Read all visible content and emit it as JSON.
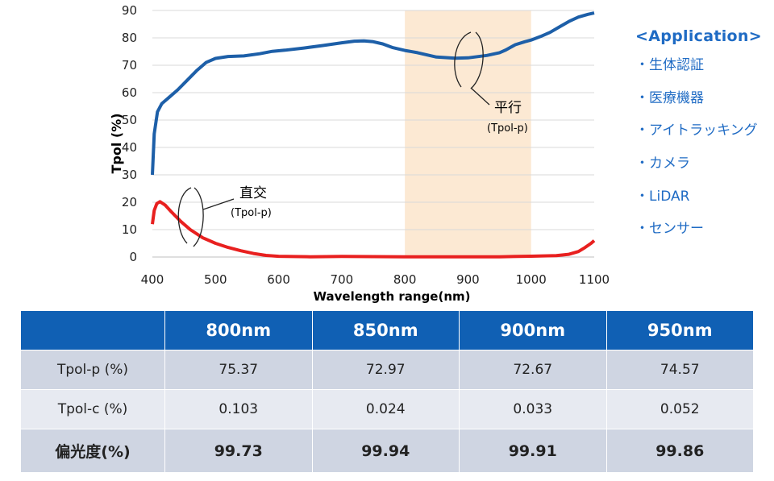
{
  "chart_data": {
    "type": "line",
    "ylabel": "Tpol (%)",
    "xlabel": "Wavelength range(nm)",
    "xlim": [
      400,
      1100
    ],
    "ylim": [
      0,
      90
    ],
    "x_ticks": [
      "400",
      "500",
      "600",
      "700",
      "800",
      "900",
      "1000",
      "1100"
    ],
    "y_ticks": [
      "0",
      "10",
      "20",
      "30",
      "40",
      "50",
      "60",
      "70",
      "80",
      "90"
    ],
    "highlight_band": [
      800,
      1000
    ],
    "series": [
      {
        "name": "Tpol-p (parallel)",
        "color": "#1d5fa8",
        "points": [
          [
            400,
            30
          ],
          [
            403,
            45
          ],
          [
            408,
            53
          ],
          [
            415,
            56
          ],
          [
            425,
            58
          ],
          [
            440,
            61
          ],
          [
            455,
            64.5
          ],
          [
            470,
            68
          ],
          [
            485,
            71
          ],
          [
            500,
            72.5
          ],
          [
            520,
            73.2
          ],
          [
            545,
            73.4
          ],
          [
            570,
            74.2
          ],
          [
            590,
            75.1
          ],
          [
            610,
            75.5
          ],
          [
            640,
            76.3
          ],
          [
            670,
            77.2
          ],
          [
            700,
            78.2
          ],
          [
            720,
            78.8
          ],
          [
            735,
            78.9
          ],
          [
            750,
            78.6
          ],
          [
            765,
            77.8
          ],
          [
            780,
            76.5
          ],
          [
            800,
            75.4
          ],
          [
            820,
            74.6
          ],
          [
            850,
            73.0
          ],
          [
            880,
            72.6
          ],
          [
            900,
            72.7
          ],
          [
            930,
            73.6
          ],
          [
            950,
            74.6
          ],
          [
            960,
            75.6
          ],
          [
            975,
            77.5
          ],
          [
            990,
            78.6
          ],
          [
            1000,
            79.2
          ],
          [
            1015,
            80.5
          ],
          [
            1030,
            82.0
          ],
          [
            1045,
            84.0
          ],
          [
            1060,
            86.0
          ],
          [
            1075,
            87.6
          ],
          [
            1090,
            88.6
          ],
          [
            1100,
            89.1
          ]
        ]
      },
      {
        "name": "Tpol-c (crossed)",
        "color": "#e8201f",
        "points": [
          [
            400,
            12
          ],
          [
            403,
            17
          ],
          [
            407,
            19.5
          ],
          [
            412,
            20.2
          ],
          [
            420,
            19
          ],
          [
            430,
            16.5
          ],
          [
            445,
            13
          ],
          [
            460,
            10
          ],
          [
            480,
            7
          ],
          [
            500,
            5
          ],
          [
            520,
            3.5
          ],
          [
            540,
            2.3
          ],
          [
            560,
            1.3
          ],
          [
            580,
            0.6
          ],
          [
            600,
            0.25
          ],
          [
            650,
            0.1
          ],
          [
            700,
            0.2
          ],
          [
            750,
            0.15
          ],
          [
            800,
            0.1
          ],
          [
            850,
            0.05
          ],
          [
            900,
            0.05
          ],
          [
            950,
            0.1
          ],
          [
            1000,
            0.3
          ],
          [
            1040,
            0.5
          ],
          [
            1060,
            1.0
          ],
          [
            1075,
            2
          ],
          [
            1085,
            3.4
          ],
          [
            1095,
            5
          ],
          [
            1100,
            6
          ]
        ]
      }
    ],
    "annotations": {
      "parallel": {
        "label": "平行",
        "sub": "(Tpol-p)"
      },
      "crossed": {
        "label": "直交",
        "sub": "(Tpol-p)"
      }
    }
  },
  "application": {
    "title": "<Application>",
    "items": [
      "・生体認証",
      "・医療機器",
      "・アイトラッキング",
      "・カメラ",
      "・LiDAR",
      "・センサー"
    ]
  },
  "table": {
    "headers": [
      "",
      "800nm",
      "850nm",
      "900nm",
      "950nm"
    ],
    "rows": [
      [
        "Tpol-p (%)",
        "75.37",
        "72.97",
        "72.67",
        "74.57"
      ],
      [
        "Tpol-c (%)",
        "0.103",
        "0.024",
        "0.033",
        "0.052"
      ],
      [
        "偏光度(%)",
        "99.73",
        "99.94",
        "99.91",
        "99.86"
      ]
    ]
  }
}
